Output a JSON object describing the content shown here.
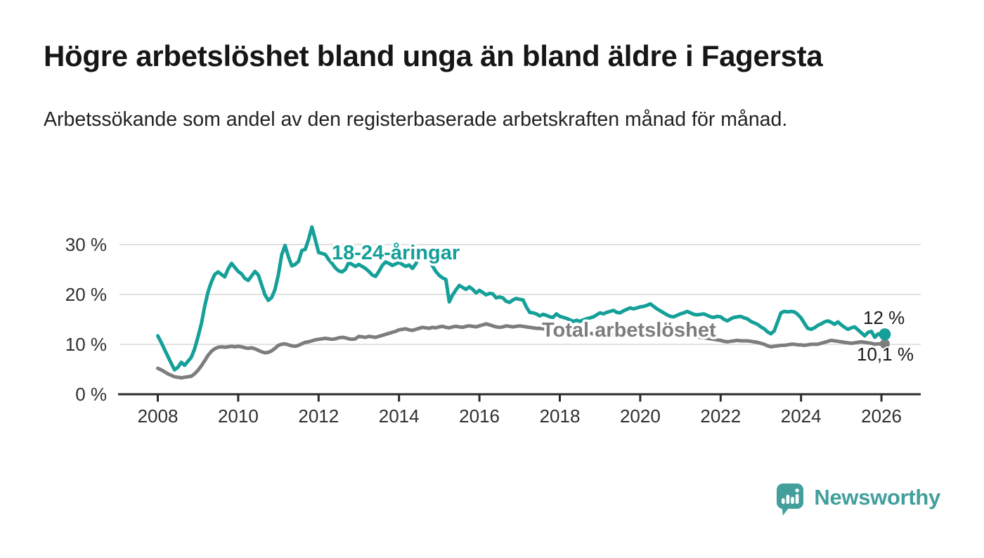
{
  "header": {
    "title": "Högre arbetslöshet bland unga än bland äldre i Fagersta",
    "subtitle": "Arbetssökande som andel av den registerbaserade arbetskraften månad för månad."
  },
  "chart_data": {
    "type": "line",
    "title": "Arbetssökande som andel av den registerbaserade arbetskraften månad för månad",
    "x_start": 2008,
    "x_step_months": 1,
    "grid": "horizontal",
    "x_axis": {
      "ticks": [
        {
          "value": 2008,
          "label": "2008"
        },
        {
          "value": 2010,
          "label": "2010"
        },
        {
          "value": 2012,
          "label": "2012"
        },
        {
          "value": 2014,
          "label": "2014"
        },
        {
          "value": 2016,
          "label": "2016"
        },
        {
          "value": 2018,
          "label": "2018"
        },
        {
          "value": 2020,
          "label": "2020"
        },
        {
          "value": 2022,
          "label": "2022"
        },
        {
          "value": 2024,
          "label": "2024"
        },
        {
          "value": 2026,
          "label": "2026"
        }
      ]
    },
    "y_axis": {
      "range": [
        0,
        35
      ],
      "ticks": [
        {
          "value": 0,
          "label": "0 %"
        },
        {
          "value": 10,
          "label": "10 %"
        },
        {
          "value": 20,
          "label": "20 %"
        },
        {
          "value": 30,
          "label": "30 %"
        }
      ]
    },
    "series": [
      {
        "name": "18-24-åringar",
        "color": "#14A099",
        "end_label": "12 %",
        "last_value": 12.0,
        "values": [
          11.7,
          10.4,
          9.0,
          7.6,
          6.2,
          4.9,
          5.4,
          6.4,
          5.8,
          6.6,
          7.4,
          9.1,
          11.5,
          14.1,
          17.6,
          20.5,
          22.5,
          24.0,
          24.5,
          24.0,
          23.5,
          25.1,
          26.2,
          25.4,
          24.6,
          24.1,
          23.2,
          22.8,
          23.7,
          24.6,
          23.9,
          21.9,
          19.9,
          18.8,
          19.4,
          21.0,
          24.0,
          28.0,
          29.8,
          27.5,
          25.7,
          26.0,
          26.6,
          28.8,
          29.0,
          31.0,
          33.5,
          31.0,
          28.4,
          28.2,
          28.0,
          27.0,
          26.2,
          25.3,
          24.7,
          24.5,
          25.0,
          26.4,
          26.0,
          25.6,
          26.0,
          25.6,
          25.2,
          24.6,
          23.9,
          23.6,
          24.6,
          25.8,
          26.5,
          26.2,
          25.8,
          26.1,
          26.4,
          26.0,
          25.6,
          25.9,
          25.2,
          26.1,
          27.6,
          28.7,
          27.8,
          26.8,
          25.7,
          24.6,
          23.8,
          23.3,
          23.0,
          18.5,
          19.9,
          20.9,
          21.8,
          21.4,
          21.0,
          21.5,
          21.0,
          20.3,
          20.8,
          20.4,
          19.9,
          20.2,
          20.1,
          19.3,
          19.5,
          19.3,
          18.6,
          18.4,
          18.9,
          19.2,
          19.0,
          18.9,
          17.5,
          16.4,
          16.3,
          16.1,
          15.7,
          16.0,
          15.8,
          15.5,
          15.4,
          16.1,
          15.6,
          15.4,
          15.2,
          14.9,
          14.6,
          14.8,
          14.6,
          14.9,
          15.1,
          15.3,
          15.5,
          15.9,
          16.3,
          16.1,
          16.4,
          16.6,
          16.8,
          16.4,
          16.3,
          16.7,
          17.0,
          17.3,
          17.1,
          17.3,
          17.5,
          17.6,
          17.8,
          18.1,
          17.6,
          17.1,
          16.7,
          16.3,
          15.9,
          15.6,
          15.5,
          15.8,
          16.1,
          16.3,
          16.6,
          16.3,
          16.0,
          15.9,
          16.0,
          16.1,
          15.8,
          15.5,
          15.4,
          15.6,
          15.5,
          15.0,
          14.7,
          15.1,
          15.4,
          15.5,
          15.6,
          15.3,
          15.1,
          14.6,
          14.3,
          14.0,
          13.5,
          13.1,
          12.5,
          12.1,
          12.7,
          14.5,
          16.3,
          16.6,
          16.5,
          16.6,
          16.5,
          16.0,
          15.3,
          14.2,
          13.2,
          13.0,
          13.3,
          13.8,
          14.1,
          14.5,
          14.7,
          14.4,
          14.0,
          14.5,
          13.9,
          13.4,
          13.0,
          13.3,
          13.5,
          12.9,
          12.3,
          11.7,
          12.4,
          12.6,
          11.4,
          12.1,
          11.8,
          12.0
        ]
      },
      {
        "name": "Total arbetslöshet",
        "color": "#7D7D7D",
        "end_label": "10,1 %",
        "last_value": 10.1,
        "values": [
          5.2,
          4.9,
          4.5,
          4.1,
          3.8,
          3.5,
          3.4,
          3.3,
          3.4,
          3.5,
          3.6,
          4.1,
          4.8,
          5.7,
          6.7,
          7.8,
          8.6,
          9.1,
          9.4,
          9.5,
          9.4,
          9.5,
          9.6,
          9.5,
          9.6,
          9.5,
          9.3,
          9.2,
          9.3,
          9.1,
          8.8,
          8.5,
          8.3,
          8.4,
          8.7,
          9.2,
          9.8,
          10.0,
          10.1,
          9.9,
          9.7,
          9.6,
          9.8,
          10.1,
          10.4,
          10.5,
          10.7,
          10.9,
          11.0,
          11.1,
          11.2,
          11.1,
          11.0,
          11.1,
          11.3,
          11.4,
          11.3,
          11.1,
          11.0,
          11.1,
          11.6,
          11.5,
          11.4,
          11.6,
          11.5,
          11.4,
          11.6,
          11.8,
          12.0,
          12.2,
          12.4,
          12.6,
          12.9,
          13.0,
          13.1,
          12.9,
          12.8,
          13.0,
          13.2,
          13.4,
          13.3,
          13.2,
          13.4,
          13.3,
          13.5,
          13.6,
          13.4,
          13.3,
          13.5,
          13.6,
          13.5,
          13.4,
          13.6,
          13.7,
          13.6,
          13.5,
          13.7,
          13.9,
          14.1,
          13.9,
          13.7,
          13.5,
          13.4,
          13.5,
          13.7,
          13.6,
          13.5,
          13.6,
          13.7,
          13.6,
          13.5,
          13.4,
          13.3,
          13.2,
          13.2,
          13.1,
          13.1,
          13.0,
          13.0,
          12.9,
          12.8,
          12.7,
          12.7,
          12.6,
          12.5,
          12.4,
          12.4,
          12.3,
          12.3,
          12.2,
          12.1,
          12.1,
          12.0,
          12.0,
          11.9,
          11.9,
          11.8,
          11.8,
          11.8,
          11.8,
          11.9,
          11.9,
          11.9,
          12.0,
          12.0,
          12.1,
          12.2,
          12.3,
          12.4,
          12.4,
          12.4,
          12.3,
          12.3,
          12.2,
          12.1,
          12.0,
          12.0,
          11.9,
          11.8,
          11.7,
          11.6,
          11.5,
          11.4,
          11.3,
          11.2,
          11.1,
          11.0,
          10.9,
          10.8,
          10.6,
          10.5,
          10.6,
          10.7,
          10.8,
          10.7,
          10.7,
          10.7,
          10.6,
          10.5,
          10.4,
          10.2,
          10.0,
          9.7,
          9.5,
          9.6,
          9.7,
          9.8,
          9.8,
          9.9,
          10.0,
          10.0,
          9.9,
          9.9,
          9.8,
          9.9,
          10.0,
          10.0,
          10.0,
          10.2,
          10.4,
          10.6,
          10.8,
          10.7,
          10.6,
          10.5,
          10.4,
          10.3,
          10.2,
          10.3,
          10.4,
          10.5,
          10.4,
          10.3,
          10.2,
          10.0,
          10.1,
          10.0,
          10.1
        ]
      }
    ]
  },
  "branding": {
    "logo_text": "Newsworthy",
    "logo_color": "#429F9C",
    "logo_icon": "bar-chart-speech-bubble-icon"
  }
}
